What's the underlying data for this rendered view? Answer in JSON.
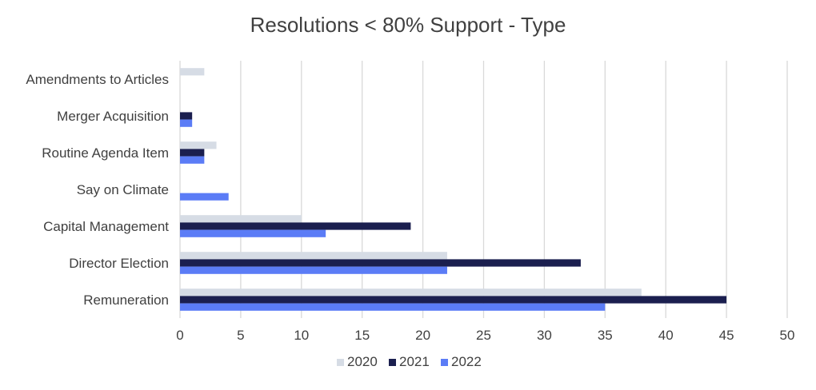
{
  "chart_data": {
    "type": "bar",
    "orientation": "horizontal",
    "title": "Resolutions < 80% Support - Type",
    "xlabel": "",
    "ylabel": "",
    "xlim": [
      0,
      50
    ],
    "x_ticks": [
      "0",
      "5",
      "10",
      "15",
      "20",
      "25",
      "30",
      "35",
      "40",
      "45",
      "50"
    ],
    "grid": "vertical",
    "legend_position": "bottom",
    "categories": [
      "Amendments to Articles",
      "Merger Acquisition",
      "Routine Agenda Item",
      "Say on Climate",
      "Capital Management",
      "Director Election",
      "Remuneration"
    ],
    "series": [
      {
        "name": "2020",
        "color": "#d6dce5",
        "values": [
          2,
          0,
          3,
          0,
          10,
          22,
          38
        ]
      },
      {
        "name": "2021",
        "color": "#1b1f4f",
        "values": [
          0,
          1,
          2,
          0,
          19,
          33,
          45
        ]
      },
      {
        "name": "2022",
        "color": "#5b7cf6",
        "values": [
          0,
          1,
          2,
          4,
          12,
          22,
          35
        ]
      }
    ]
  }
}
